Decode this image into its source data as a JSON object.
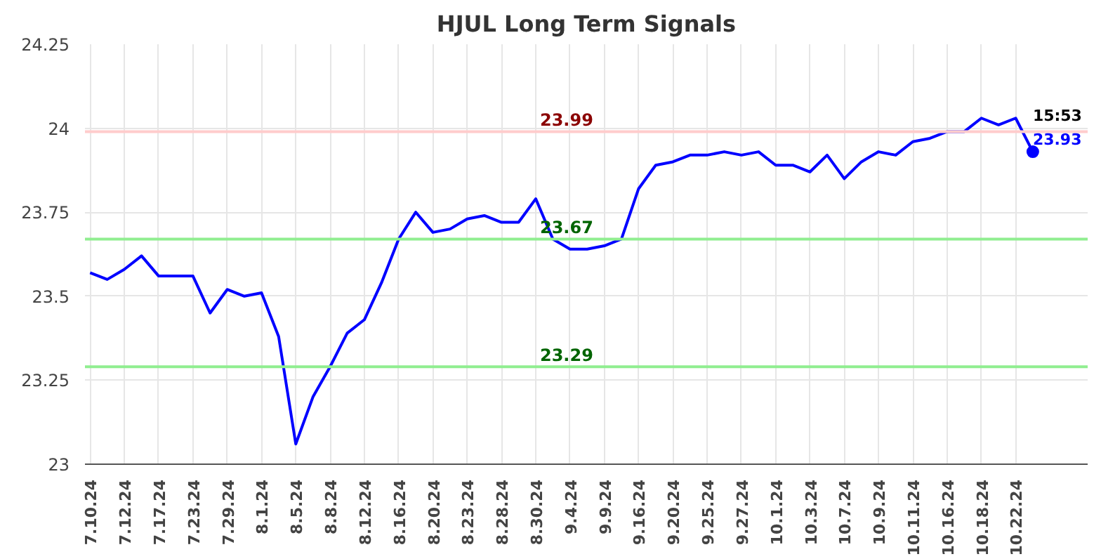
{
  "chart_data": {
    "type": "line",
    "title": "HJUL Long Term Signals",
    "categories": [
      "7.10.24",
      null,
      "7.12.24",
      null,
      "7.17.24",
      null,
      "7.23.24",
      null,
      "7.29.24",
      null,
      "8.1.24",
      null,
      "8.5.24",
      null,
      "8.8.24",
      null,
      "8.12.24",
      null,
      "8.16.24",
      null,
      "8.20.24",
      null,
      "8.23.24",
      null,
      "8.28.24",
      null,
      "8.30.24",
      null,
      "9.4.24",
      null,
      "9.9.24",
      null,
      "9.16.24",
      null,
      "9.20.24",
      null,
      "9.25.24",
      null,
      "9.27.24",
      null,
      "10.1.24",
      null,
      "10.3.24",
      null,
      "10.7.24",
      null,
      "10.9.24",
      null,
      "10.11.24",
      null,
      "10.16.24",
      null,
      "10.18.24",
      null,
      "10.22.24",
      null
    ],
    "series": [
      {
        "color": "#0000ff",
        "values": [
          23.57,
          23.55,
          23.58,
          23.62,
          23.56,
          23.56,
          23.56,
          23.45,
          23.52,
          23.5,
          23.51,
          23.38,
          23.06,
          23.2,
          23.29,
          23.39,
          23.43,
          23.54,
          23.67,
          23.75,
          23.69,
          23.7,
          23.73,
          23.74,
          23.72,
          23.72,
          23.79,
          23.67,
          23.64,
          23.64,
          23.65,
          23.67,
          23.82,
          23.89,
          23.9,
          23.92,
          23.92,
          23.93,
          23.92,
          23.93,
          23.89,
          23.89,
          23.87,
          23.92,
          23.85,
          23.9,
          23.93,
          23.92,
          23.96,
          23.97,
          23.99,
          23.99,
          24.03,
          24.01,
          24.03,
          23.93
        ]
      }
    ],
    "ylim": [
      23,
      24.25
    ],
    "yticks": [
      23,
      23.25,
      23.5,
      {
        "value": 23.75,
        "label": "23.75"
      },
      24,
      24.25
    ],
    "ref_lines": [
      {
        "axis": "y",
        "value": 23.99,
        "label": "23.99",
        "color": "#ffcccc"
      },
      {
        "axis": "y",
        "value": 23.67,
        "label": "23.67",
        "color": "#90ee90"
      },
      {
        "axis": "y",
        "value": 23.29,
        "label": "23.29",
        "color": "#90ee90"
      }
    ],
    "annotations": [
      "15:53",
      "23.93"
    ],
    "grid": true,
    "marker": "none"
  }
}
